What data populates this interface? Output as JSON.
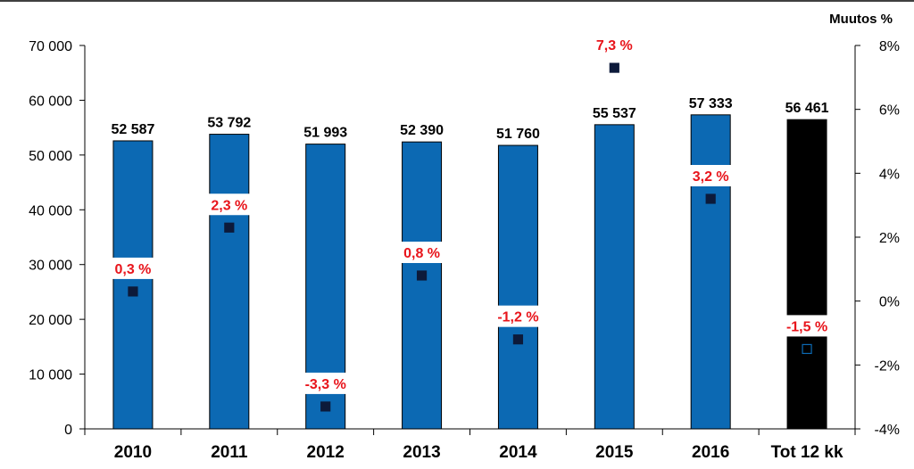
{
  "chart_data": {
    "type": "bar",
    "categories": [
      "2010",
      "2011",
      "2012",
      "2013",
      "2014",
      "2015",
      "2016",
      "Tot 12 kk"
    ],
    "series": [
      {
        "values": [
          52587,
          53792,
          51993,
          52390,
          51760,
          55537,
          57333,
          56461
        ],
        "value_labels": [
          "52 587",
          "53 792",
          "51 993",
          "52 390",
          "51 760",
          "55 537",
          "57 333",
          "56 461"
        ],
        "colors": [
          "#0c69b3",
          "#0c69b3",
          "#0c69b3",
          "#0c69b3",
          "#0c69b3",
          "#0c69b3",
          "#0c69b3",
          "#000000"
        ]
      },
      {
        "type": "scatter",
        "axis": "right",
        "values": [
          0.3,
          2.3,
          -3.3,
          0.8,
          -1.2,
          7.3,
          3.2,
          -1.5
        ],
        "value_labels": [
          "0,3 %",
          "2,3 %",
          "-3,3 %",
          "0,8 %",
          "-1,2 %",
          "7,3 %",
          "3,2 %",
          "-1,5 %"
        ],
        "marker_colors": [
          "#0d1a3a",
          "#0d1a3a",
          "#0d1a3a",
          "#0d1a3a",
          "#0d1a3a",
          "#0d1a3a",
          "#0d1a3a",
          "#0c69b3"
        ]
      }
    ],
    "y_left": {
      "ylim": [
        0,
        70000
      ],
      "ticks": [
        0,
        10000,
        20000,
        30000,
        40000,
        50000,
        60000,
        70000
      ],
      "tick_labels": [
        "0",
        "10 000",
        "20 000",
        "30 000",
        "40 000",
        "50 000",
        "60 000",
        "70 000"
      ]
    },
    "y_right": {
      "title": "Muutos %",
      "ylim": [
        -4,
        8
      ],
      "ticks": [
        -4,
        -2,
        0,
        2,
        4,
        6,
        8
      ],
      "tick_labels": [
        "-4%",
        "-2%",
        "0%",
        "2%",
        "4%",
        "6%",
        "8%"
      ]
    },
    "grid": false,
    "legend": "none"
  }
}
